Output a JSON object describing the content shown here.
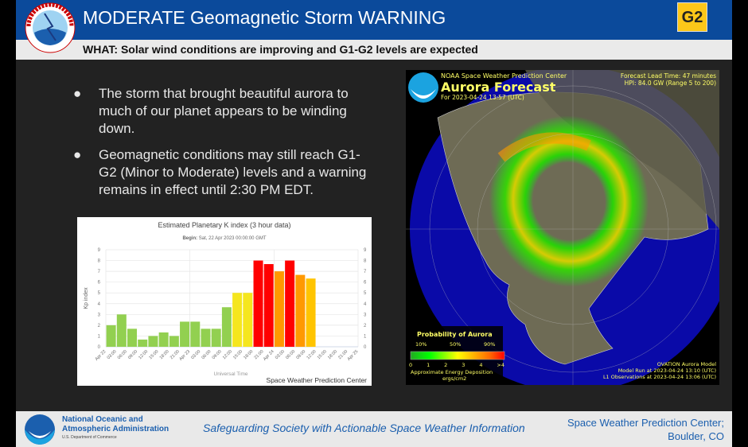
{
  "header": {
    "title": "MODERATE Geomagnetic Storm WARNING",
    "badge": "G2",
    "subtitle": "WHAT: Solar wind conditions are improving and G1-G2 levels are expected",
    "logo": "National Weather Service",
    "colors": {
      "header": "#0b4a9b",
      "badge": "#fcc719"
    }
  },
  "bullets": [
    {
      "text": "The storm that brought beautiful aurora to much of our planet appears to be winding down."
    },
    {
      "text": "Geomagnetic conditions may still reach G1-G2 (Minor to Moderate) levels and a warning remains in effect until 2:30 PM EDT."
    }
  ],
  "chart_data": {
    "type": "bar",
    "title": "Estimated Planetary K index (3 hour data)",
    "subtitle_label": "Begin:",
    "subtitle_value": "Sat, 22 Apr 2023 00:00:00 GMT",
    "xlabel": "Universal Time",
    "ylabel": "Kp index",
    "credit": "Space Weather Prediction Center",
    "ylim": [
      0,
      9
    ],
    "yticks": [
      0,
      1,
      2,
      3,
      4,
      5,
      6,
      7,
      8,
      9
    ],
    "xticks": [
      "Apr 22",
      "03:00",
      "06:00",
      "09:00",
      "12:00",
      "15:00",
      "18:00",
      "21:00",
      "Apr 23",
      "03:00",
      "06:00",
      "09:00",
      "12:00",
      "15:00",
      "18:00",
      "21:00",
      "Apr 24",
      "03:00",
      "06:00",
      "09:00",
      "12:00",
      "15:00",
      "18:00",
      "21:00",
      "Apr 25"
    ],
    "values": [
      2,
      3,
      1.67,
      0.67,
      1,
      1.33,
      1,
      2.33,
      2.33,
      1.67,
      1.67,
      3.67,
      5,
      5,
      8,
      7.67,
      7,
      8,
      6.67,
      6.33
    ],
    "colors": [
      "#92d050",
      "#92d050",
      "#92d050",
      "#92d050",
      "#92d050",
      "#92d050",
      "#92d050",
      "#92d050",
      "#92d050",
      "#92d050",
      "#92d050",
      "#92d050",
      "#f5e61e",
      "#f5e61e",
      "#ff0000",
      "#ff0000",
      "#ff9900",
      "#ff0000",
      "#ff9900",
      "#ffc400"
    ],
    "grid": true
  },
  "aurora": {
    "org": "NOAA Space Weather Prediction Center",
    "title": "Aurora Forecast",
    "for": "For 2023-04-24 13:57 (UTC)",
    "lead": "Forecast Lead Time:  47 minutes",
    "hpi": "HPI:  84.0 GW (Range 5 to 200)",
    "legend_title": "Probability of Aurora",
    "pct": [
      "10%",
      "50%",
      "90%"
    ],
    "scale": [
      "0",
      "1",
      "2",
      "3",
      "4",
      ">4"
    ],
    "energy": "Approximate Energy Deposition",
    "units": "ergs/cm2",
    "model": "OVATION Aurora Model",
    "run": "Model Run at 2023-04-24 13:10 (UTC)",
    "l1": "L1 Observations at 2023-04-24 13:06 (UTC)"
  },
  "footer": {
    "org_line1": "National Oceanic and",
    "org_line2": "Atmospheric Administration",
    "dept": "U.S. Department of Commerce",
    "tagline": "Safeguarding Society with Actionable Space Weather Information",
    "loc_line1": "Space Weather Prediction Center;",
    "loc_line2": "Boulder, CO"
  }
}
